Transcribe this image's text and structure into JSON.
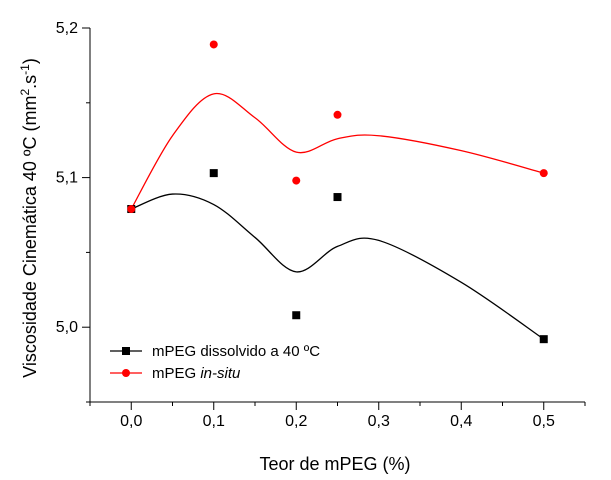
{
  "chart_data": {
    "type": "scatter",
    "xlabel": "Teor de mPEG (%)",
    "ylabel": "Viscosidade Cinemática 40 ºC (mm",
    "ylabel_sup1": "2",
    "ylabel_mid": ".s",
    "ylabel_sup2": "-1",
    "ylabel_end": ")",
    "xlim": [
      -0.05,
      0.55
    ],
    "ylim": [
      4.95,
      5.2
    ],
    "xticks": [
      0.0,
      0.1,
      0.2,
      0.3,
      0.4,
      0.5
    ],
    "xtick_labels": [
      "0,0",
      "0,1",
      "0,2",
      "0,3",
      "0,4",
      "0,5"
    ],
    "yticks": [
      5.0,
      5.1,
      5.2
    ],
    "ytick_labels": [
      "5,0",
      "5,1",
      "5,2"
    ],
    "legend_position": "bottom-left",
    "series": [
      {
        "name": "mPEG dissolvido a 40 ºC",
        "marker": "square",
        "color": "#000000",
        "points": [
          {
            "x": 0.0,
            "y": 5.079
          },
          {
            "x": 0.1,
            "y": 5.103
          },
          {
            "x": 0.2,
            "y": 5.008
          },
          {
            "x": 0.25,
            "y": 5.087
          },
          {
            "x": 0.5,
            "y": 4.992
          }
        ],
        "fit_curve": [
          [
            0.0,
            5.079
          ],
          [
            0.05,
            5.089
          ],
          [
            0.1,
            5.082
          ],
          [
            0.15,
            5.06
          ],
          [
            0.2,
            5.037
          ],
          [
            0.25,
            5.054
          ],
          [
            0.3,
            5.058
          ],
          [
            0.4,
            5.03
          ],
          [
            0.5,
            4.992
          ]
        ]
      },
      {
        "name_prefix": "mPEG ",
        "name_italic": "in-situ",
        "marker": "circle",
        "color": "#ff0000",
        "points": [
          {
            "x": 0.0,
            "y": 5.079
          },
          {
            "x": 0.1,
            "y": 5.189
          },
          {
            "x": 0.2,
            "y": 5.098
          },
          {
            "x": 0.25,
            "y": 5.142
          },
          {
            "x": 0.5,
            "y": 5.103
          }
        ],
        "fit_curve": [
          [
            0.0,
            5.079
          ],
          [
            0.05,
            5.128
          ],
          [
            0.1,
            5.156
          ],
          [
            0.15,
            5.14
          ],
          [
            0.2,
            5.117
          ],
          [
            0.25,
            5.126
          ],
          [
            0.3,
            5.128
          ],
          [
            0.4,
            5.118
          ],
          [
            0.5,
            5.103
          ]
        ]
      }
    ]
  }
}
